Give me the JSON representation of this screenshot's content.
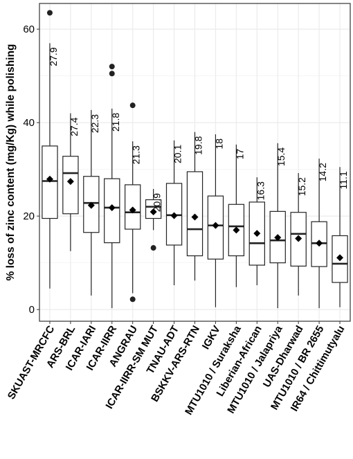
{
  "chart_data": {
    "type": "boxplot",
    "title": "",
    "xlabel": "",
    "ylabel": "% loss of zinc content (mg/Kg) while polishing",
    "ylim": [
      -2.5,
      65.5
    ],
    "yticks": [
      0,
      20,
      40,
      60
    ],
    "grid": true,
    "legend": "none",
    "colors": {
      "panel_border": "#333333",
      "grid": "#ebebeb",
      "box": "#222222",
      "mean_marker": "#000000",
      "text": "#000000"
    },
    "categories": [
      "SKUAST-MRCFC",
      "ARS-BRL",
      "ICAR-IARI",
      "ICAR-IIRR",
      "ANGRAU",
      "ICAR-IIRR-SM MUT",
      "TNAU-ADT",
      "BSKKV-ARS-RTN",
      "IGKV",
      "MTU1010 / Suraksha",
      "Liberian-African",
      "MTU1010 / Jalapriya",
      "UAS-Dharwad",
      "MTU1010 / BR 2655",
      "IR64 / Chittimutyalu"
    ],
    "boxes": [
      {
        "min": 4.5,
        "q1": 19.5,
        "median": 27.5,
        "q3": 35.0,
        "max": 57.0,
        "mean": 27.9,
        "outliers": [
          63.5
        ]
      },
      {
        "min": 12.5,
        "q1": 20.5,
        "median": 29.2,
        "q3": 32.8,
        "max": 42.0,
        "mean": 27.4,
        "outliers": []
      },
      {
        "min": 3.0,
        "q1": 16.5,
        "median": 22.8,
        "q3": 28.5,
        "max": 42.7,
        "mean": 22.3,
        "outliers": []
      },
      {
        "min": 0.3,
        "q1": 14.3,
        "median": 21.8,
        "q3": 28.0,
        "max": 43.0,
        "mean": 21.8,
        "outliers": [
          52.0,
          50.5
        ]
      },
      {
        "min": 3.5,
        "q1": 17.2,
        "median": 20.8,
        "q3": 26.7,
        "max": 36.0,
        "mean": 21.3,
        "outliers": [
          43.7,
          2.2
        ]
      },
      {
        "min": 17.0,
        "q1": 19.5,
        "median": 22.0,
        "q3": 23.5,
        "max": 25.8,
        "mean": 20.9,
        "outliers": [
          13.2
        ]
      },
      {
        "min": 5.2,
        "q1": 13.8,
        "median": 20.2,
        "q3": 27.0,
        "max": 36.2,
        "mean": 20.1,
        "outliers": []
      },
      {
        "min": 6.2,
        "q1": 11.5,
        "median": 17.2,
        "q3": 29.5,
        "max": 38.0,
        "mean": 19.8,
        "outliers": []
      },
      {
        "min": 0.5,
        "q1": 10.8,
        "median": 18.0,
        "q3": 24.3,
        "max": 37.5,
        "mean": 18.0,
        "outliers": []
      },
      {
        "min": 4.8,
        "q1": 11.5,
        "median": 17.8,
        "q3": 22.5,
        "max": 35.3,
        "mean": 17.0,
        "outliers": []
      },
      {
        "min": 5.2,
        "q1": 9.5,
        "median": 14.2,
        "q3": 23.0,
        "max": 28.3,
        "mean": 16.3,
        "outliers": []
      },
      {
        "min": 0.3,
        "q1": 10.0,
        "median": 14.8,
        "q3": 21.0,
        "max": 35.6,
        "mean": 15.4,
        "outliers": []
      },
      {
        "min": 3.0,
        "q1": 9.3,
        "median": 16.2,
        "q3": 20.8,
        "max": 29.2,
        "mean": 15.2,
        "outliers": []
      },
      {
        "min": 0.3,
        "q1": 9.2,
        "median": 14.2,
        "q3": 18.8,
        "max": 32.3,
        "mean": 14.2,
        "outliers": []
      },
      {
        "min": 0.5,
        "q1": 5.8,
        "median": 9.8,
        "q3": 15.8,
        "max": 30.5,
        "mean": 11.1,
        "outliers": []
      }
    ],
    "mean_labels": [
      "27.9",
      "27.4",
      "22.3",
      "21.8",
      "21.3",
      "20.9",
      "20.1",
      "19.8",
      "18",
      "17",
      "16.3",
      "15.4",
      "15.2",
      "14.2",
      "11.1"
    ]
  }
}
